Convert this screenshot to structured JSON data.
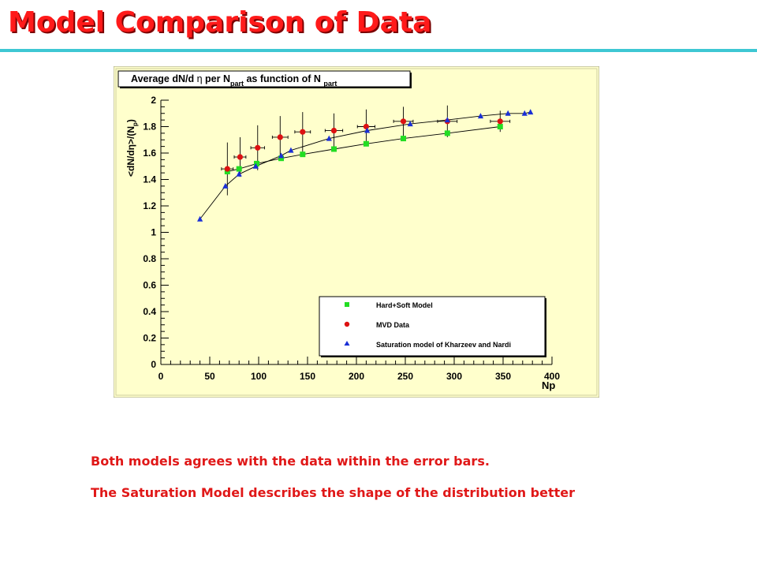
{
  "slide": {
    "title": "Model Comparison of Data",
    "accent_color": "#3ec7d3",
    "title_color": "#ff1a1a",
    "captions": [
      "Both models agrees with the data within the error bars.",
      "The Saturation Model describes the shape of the distribution  better"
    ]
  },
  "chart_data": {
    "type": "scatter",
    "title": "Average dN/d η per N_part as function of N_part",
    "title_parts": {
      "a": "Average dN/d ",
      "eta": "η",
      "b": " per N",
      "sub1": "part",
      "c": " as function of N ",
      "sub2": "part"
    },
    "xlabel": "Np",
    "ylabel": "<dN/dη>/(N_p)",
    "ylabel_parts": {
      "main": "<dN/dη>/(N",
      "sub": "p",
      "close": ")"
    },
    "xlim": [
      0,
      400
    ],
    "ylim": [
      0,
      2
    ],
    "xticks": [
      "0",
      "50",
      "100",
      "150",
      "200",
      "250",
      "300",
      "350",
      "400"
    ],
    "yticks": [
      "0",
      "0.2",
      "0.4",
      "0.6",
      "0.8",
      "1",
      "1.2",
      "1.4",
      "1.6",
      "1.8",
      "2"
    ],
    "frame_background": "#ffffcc",
    "legend_position": "bottom-right",
    "series": [
      {
        "name": "Hard+Soft Model",
        "marker": "square",
        "color": "#22dd22",
        "x": [
          68,
          80,
          98,
          123,
          145,
          177,
          210,
          248,
          293,
          347
        ],
        "y": [
          1.46,
          1.48,
          1.52,
          1.56,
          1.59,
          1.63,
          1.67,
          1.71,
          1.75,
          1.8
        ]
      },
      {
        "name": "MVD Data",
        "marker": "circle",
        "color": "#dd1111",
        "x": [
          68,
          81,
          99,
          122,
          145,
          177,
          210,
          248,
          293,
          347
        ],
        "y": [
          1.48,
          1.57,
          1.64,
          1.72,
          1.76,
          1.77,
          1.8,
          1.84,
          1.84,
          1.84
        ],
        "yerr": [
          0.2,
          0.15,
          0.17,
          0.16,
          0.15,
          0.13,
          0.13,
          0.11,
          0.12,
          0.08
        ],
        "xerr": [
          6,
          6,
          7,
          8,
          8,
          9,
          9,
          10,
          10,
          10
        ]
      },
      {
        "name": "Saturation model of Kharzeev and Nardi",
        "marker": "triangle",
        "color": "#1a2fd6",
        "x": [
          40,
          66,
          80,
          97,
          123,
          133,
          172,
          211,
          255,
          293,
          327,
          355,
          372,
          378
        ],
        "y": [
          1.1,
          1.35,
          1.44,
          1.5,
          1.58,
          1.62,
          1.71,
          1.77,
          1.82,
          1.85,
          1.88,
          1.9,
          1.9,
          1.91
        ]
      }
    ]
  }
}
